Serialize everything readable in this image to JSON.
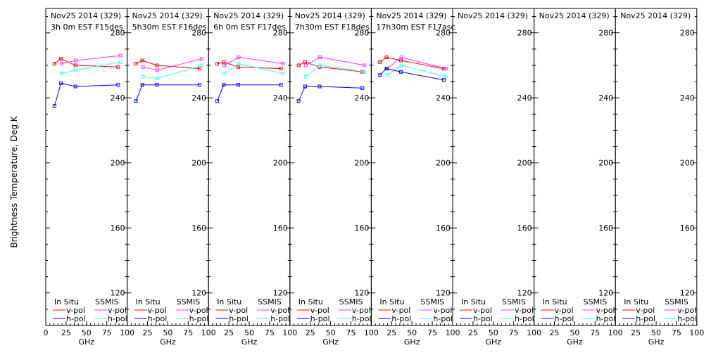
{
  "chart_data": {
    "type": "line",
    "ylabel": "Brightness Temperature, Deg K",
    "xlabel": "GHz",
    "ylim": [
      100,
      295
    ],
    "xlim": [
      0,
      100
    ],
    "yticks": [
      120,
      160,
      200,
      240,
      280
    ],
    "xtick_labels": [
      "0",
      "25",
      "50",
      "75",
      "100"
    ],
    "legend": {
      "insitu_title": "In Situ",
      "ssmis_title": "SSMIS",
      "vpol": "v-pol",
      "hpol": "h-pol"
    },
    "colors": {
      "insitu_v": "#ff0000",
      "insitu_h": "#0000ff",
      "ssmis_v": "#ff33ff",
      "ssmis_h": "#33ffff"
    },
    "panels": [
      {
        "date": "Nov25 2014 (329)",
        "time": "3h 0m EST F15des",
        "insitu_v": [
          [
            10.7,
            261
          ],
          [
            18.7,
            264
          ],
          [
            36.5,
            260
          ],
          [
            89,
            259
          ]
        ],
        "insitu_h": [
          [
            10.7,
            235
          ],
          [
            18.7,
            249
          ],
          [
            36.5,
            247
          ],
          [
            89,
            248
          ]
        ],
        "ssmis_v": [
          [
            19.35,
            261
          ],
          [
            37,
            263
          ],
          [
            91.65,
            266
          ]
        ],
        "ssmis_h": [
          [
            19.35,
            255
          ],
          [
            37,
            257
          ],
          [
            91.65,
            262
          ]
        ]
      },
      {
        "date": "Nov25 2014 (329)",
        "time": "5h30m EST F16des",
        "insitu_v": [
          [
            10.7,
            261
          ],
          [
            18.7,
            263
          ],
          [
            36.5,
            260
          ],
          [
            89,
            258
          ]
        ],
        "insitu_h": [
          [
            10.7,
            238
          ],
          [
            18.7,
            248
          ],
          [
            36.5,
            248
          ],
          [
            89,
            248
          ]
        ],
        "ssmis_v": [
          [
            19.35,
            259
          ],
          [
            37,
            257
          ],
          [
            91.65,
            264
          ]
        ],
        "ssmis_h": [
          [
            19.35,
            253
          ],
          [
            37,
            252
          ],
          [
            91.65,
            260
          ]
        ]
      },
      {
        "date": "Nov25 2014 (329)",
        "time": "6h 0m EST F17des",
        "insitu_v": [
          [
            10.7,
            261
          ],
          [
            18.7,
            262
          ],
          [
            36.5,
            259
          ],
          [
            89,
            258
          ]
        ],
        "insitu_h": [
          [
            10.7,
            238
          ],
          [
            18.7,
            248
          ],
          [
            36.5,
            248
          ],
          [
            89,
            248
          ]
        ],
        "ssmis_v": [
          [
            19.35,
            260
          ],
          [
            37,
            265
          ],
          [
            91.65,
            261
          ]
        ],
        "ssmis_h": [
          [
            19.35,
            255
          ],
          [
            37,
            261
          ],
          [
            91.65,
            255
          ]
        ]
      },
      {
        "date": "Nov25 2014 (329)",
        "time": "7h30m EST F18des",
        "insitu_v": [
          [
            10.7,
            260
          ],
          [
            18.7,
            262
          ],
          [
            36.5,
            259
          ],
          [
            89,
            256
          ]
        ],
        "insitu_h": [
          [
            10.7,
            238
          ],
          [
            18.7,
            247
          ],
          [
            36.5,
            247
          ],
          [
            89,
            246
          ]
        ],
        "ssmis_v": [
          [
            19.35,
            260
          ],
          [
            37,
            265
          ],
          [
            91.65,
            260
          ]
        ],
        "ssmis_h": [
          [
            19.35,
            253
          ],
          [
            37,
            260
          ],
          [
            91.65,
            256
          ]
        ]
      },
      {
        "date": "Nov25 2014 (329)",
        "time": "17h30m EST F17asc",
        "insitu_v": [
          [
            10.7,
            262
          ],
          [
            18.7,
            265
          ],
          [
            36.5,
            263
          ],
          [
            89,
            258
          ]
        ],
        "insitu_h": [
          [
            10.7,
            254
          ],
          [
            18.7,
            258
          ],
          [
            36.5,
            256
          ],
          [
            89,
            251
          ]
        ],
        "ssmis_v": [
          [
            19.35,
            258
          ],
          [
            37,
            265
          ],
          [
            91.65,
            258
          ]
        ],
        "ssmis_h": [
          [
            19.35,
            254
          ],
          [
            37,
            260
          ],
          [
            91.65,
            253
          ]
        ]
      },
      {
        "date": "Nov25 2014 (329)",
        "time": "",
        "insitu_v": [],
        "insitu_h": [],
        "ssmis_v": [],
        "ssmis_h": []
      },
      {
        "date": "Nov25 2014 (329)",
        "time": "",
        "insitu_v": [],
        "insitu_h": [],
        "ssmis_v": [],
        "ssmis_h": []
      },
      {
        "date": "Nov25 2014 (329)",
        "time": "",
        "insitu_v": [],
        "insitu_h": [],
        "ssmis_v": [],
        "ssmis_h": []
      }
    ]
  }
}
